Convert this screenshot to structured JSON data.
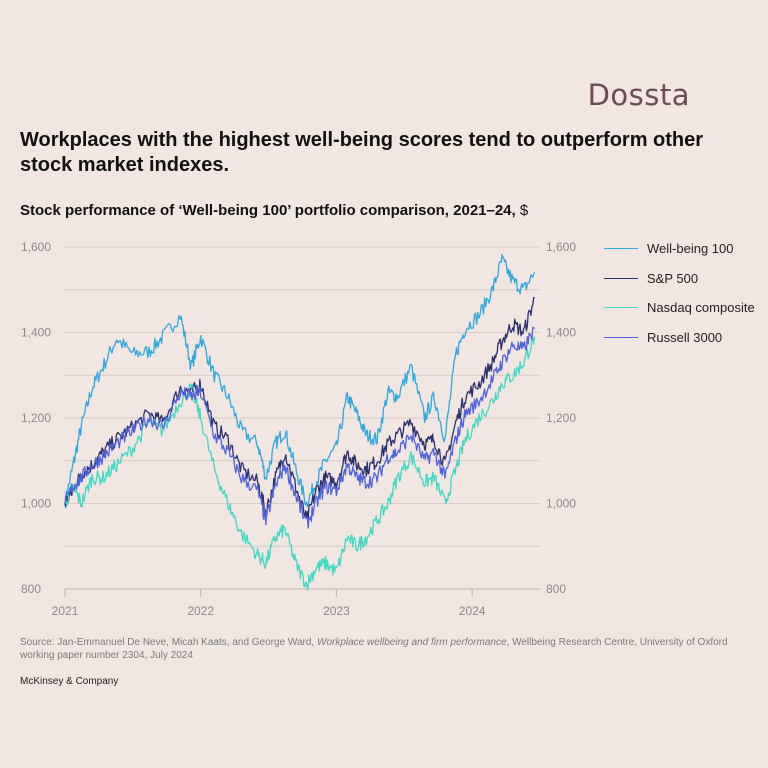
{
  "brand": {
    "name": "Dossta"
  },
  "headline": "Workplaces with the highest well-being scores tend to outperform other stock market indexes.",
  "subtitle": {
    "text": "Stock performance of ‘Well-being 100’ portfolio comparison, 2021–24,",
    "unit": "$"
  },
  "source": {
    "prefix": "Source: Jan-Emmanuel De Neve, Micah Kaats, and George Ward,",
    "title": "Workplace wellbeing and firm performance",
    "suffix": ", Wellbeing Research Centre, University of Oxford working paper number 2304, July 2024"
  },
  "footer": "McKinsey & Company",
  "chart_data": {
    "type": "line",
    "title": "Stock performance of ‘Well-being 100’ portfolio comparison, 2021–24, $",
    "x_ticks": [
      "2021",
      "2022",
      "2023",
      "2024"
    ],
    "y_ticks": [
      "800",
      "1,000",
      "1,200",
      "1,400",
      "1,600"
    ],
    "ylim": [
      800,
      1600
    ],
    "xlim": [
      2021.0,
      2024.5
    ],
    "grid": true,
    "legend_position": "right",
    "series": [
      {
        "name": "Well-being 100",
        "color": "#2ea8e0",
        "points": [
          [
            2021.0,
            1000
          ],
          [
            2021.06,
            1090
          ],
          [
            2021.12,
            1180
          ],
          [
            2021.2,
            1270
          ],
          [
            2021.28,
            1320
          ],
          [
            2021.38,
            1385
          ],
          [
            2021.5,
            1350
          ],
          [
            2021.62,
            1355
          ],
          [
            2021.72,
            1390
          ],
          [
            2021.85,
            1440
          ],
          [
            2021.93,
            1320
          ],
          [
            2022.0,
            1390
          ],
          [
            2022.1,
            1300
          ],
          [
            2022.2,
            1250
          ],
          [
            2022.3,
            1170
          ],
          [
            2022.42,
            1140
          ],
          [
            2022.48,
            1060
          ],
          [
            2022.55,
            1140
          ],
          [
            2022.62,
            1170
          ],
          [
            2022.7,
            1080
          ],
          [
            2022.78,
            1000
          ],
          [
            2022.85,
            1050
          ],
          [
            2022.92,
            1100
          ],
          [
            2023.0,
            1130
          ],
          [
            2023.08,
            1250
          ],
          [
            2023.15,
            1210
          ],
          [
            2023.22,
            1160
          ],
          [
            2023.3,
            1150
          ],
          [
            2023.38,
            1260
          ],
          [
            2023.45,
            1250
          ],
          [
            2023.55,
            1320
          ],
          [
            2023.65,
            1200
          ],
          [
            2023.72,
            1250
          ],
          [
            2023.8,
            1150
          ],
          [
            2023.88,
            1350
          ],
          [
            2023.95,
            1410
          ],
          [
            2024.05,
            1440
          ],
          [
            2024.15,
            1500
          ],
          [
            2024.22,
            1570
          ],
          [
            2024.3,
            1520
          ],
          [
            2024.38,
            1500
          ],
          [
            2024.46,
            1540
          ]
        ]
      },
      {
        "name": "S&P 500",
        "color": "#2b2f6e",
        "points": [
          [
            2021.0,
            1000
          ],
          [
            2021.06,
            1030
          ],
          [
            2021.12,
            1070
          ],
          [
            2021.2,
            1090
          ],
          [
            2021.28,
            1120
          ],
          [
            2021.38,
            1150
          ],
          [
            2021.5,
            1180
          ],
          [
            2021.62,
            1210
          ],
          [
            2021.72,
            1190
          ],
          [
            2021.85,
            1270
          ],
          [
            2021.93,
            1260
          ],
          [
            2022.0,
            1280
          ],
          [
            2022.1,
            1180
          ],
          [
            2022.2,
            1150
          ],
          [
            2022.3,
            1080
          ],
          [
            2022.42,
            1050
          ],
          [
            2022.48,
            980
          ],
          [
            2022.55,
            1060
          ],
          [
            2022.62,
            1120
          ],
          [
            2022.7,
            1040
          ],
          [
            2022.78,
            960
          ],
          [
            2022.85,
            1030
          ],
          [
            2022.92,
            1060
          ],
          [
            2023.0,
            1050
          ],
          [
            2023.08,
            1120
          ],
          [
            2023.15,
            1090
          ],
          [
            2023.22,
            1080
          ],
          [
            2023.3,
            1100
          ],
          [
            2023.38,
            1140
          ],
          [
            2023.45,
            1160
          ],
          [
            2023.55,
            1190
          ],
          [
            2023.65,
            1140
          ],
          [
            2023.72,
            1150
          ],
          [
            2023.8,
            1090
          ],
          [
            2023.88,
            1190
          ],
          [
            2023.95,
            1250
          ],
          [
            2024.05,
            1280
          ],
          [
            2024.15,
            1330
          ],
          [
            2024.22,
            1380
          ],
          [
            2024.3,
            1420
          ],
          [
            2024.38,
            1400
          ],
          [
            2024.46,
            1480
          ]
        ]
      },
      {
        "name": "Nasdaq composite",
        "color": "#3fd9c4",
        "points": [
          [
            2021.0,
            1000
          ],
          [
            2021.06,
            1040
          ],
          [
            2021.12,
            1000
          ],
          [
            2021.2,
            1060
          ],
          [
            2021.28,
            1060
          ],
          [
            2021.38,
            1090
          ],
          [
            2021.5,
            1130
          ],
          [
            2021.62,
            1190
          ],
          [
            2021.72,
            1170
          ],
          [
            2021.85,
            1240
          ],
          [
            2021.93,
            1270
          ],
          [
            2022.0,
            1200
          ],
          [
            2022.1,
            1080
          ],
          [
            2022.2,
            1000
          ],
          [
            2022.3,
            930
          ],
          [
            2022.42,
            880
          ],
          [
            2022.48,
            860
          ],
          [
            2022.55,
            920
          ],
          [
            2022.62,
            940
          ],
          [
            2022.7,
            860
          ],
          [
            2022.78,
            810
          ],
          [
            2022.85,
            850
          ],
          [
            2022.92,
            860
          ],
          [
            2023.0,
            840
          ],
          [
            2023.08,
            920
          ],
          [
            2023.15,
            900
          ],
          [
            2023.22,
            920
          ],
          [
            2023.3,
            960
          ],
          [
            2023.38,
            1000
          ],
          [
            2023.45,
            1060
          ],
          [
            2023.55,
            1110
          ],
          [
            2023.65,
            1050
          ],
          [
            2023.72,
            1060
          ],
          [
            2023.8,
            1000
          ],
          [
            2023.88,
            1080
          ],
          [
            2023.95,
            1150
          ],
          [
            2024.05,
            1200
          ],
          [
            2024.15,
            1240
          ],
          [
            2024.22,
            1280
          ],
          [
            2024.3,
            1300
          ],
          [
            2024.38,
            1330
          ],
          [
            2024.46,
            1390
          ]
        ]
      },
      {
        "name": "Russell 3000",
        "color": "#4f63e0",
        "points": [
          [
            2021.0,
            1000
          ],
          [
            2021.06,
            1040
          ],
          [
            2021.12,
            1060
          ],
          [
            2021.2,
            1090
          ],
          [
            2021.28,
            1110
          ],
          [
            2021.38,
            1140
          ],
          [
            2021.5,
            1170
          ],
          [
            2021.62,
            1200
          ],
          [
            2021.72,
            1180
          ],
          [
            2021.85,
            1260
          ],
          [
            2021.93,
            1250
          ],
          [
            2022.0,
            1260
          ],
          [
            2022.1,
            1160
          ],
          [
            2022.2,
            1120
          ],
          [
            2022.3,
            1060
          ],
          [
            2022.42,
            1030
          ],
          [
            2022.48,
            960
          ],
          [
            2022.55,
            1040
          ],
          [
            2022.62,
            1090
          ],
          [
            2022.7,
            1020
          ],
          [
            2022.78,
            950
          ],
          [
            2022.85,
            1000
          ],
          [
            2022.92,
            1040
          ],
          [
            2023.0,
            1030
          ],
          [
            2023.08,
            1090
          ],
          [
            2023.15,
            1060
          ],
          [
            2023.22,
            1050
          ],
          [
            2023.3,
            1060
          ],
          [
            2023.38,
            1110
          ],
          [
            2023.45,
            1120
          ],
          [
            2023.55,
            1160
          ],
          [
            2023.65,
            1100
          ],
          [
            2023.72,
            1120
          ],
          [
            2023.8,
            1060
          ],
          [
            2023.88,
            1150
          ],
          [
            2023.95,
            1210
          ],
          [
            2024.05,
            1240
          ],
          [
            2024.15,
            1290
          ],
          [
            2024.22,
            1330
          ],
          [
            2024.3,
            1370
          ],
          [
            2024.38,
            1360
          ],
          [
            2024.46,
            1410
          ]
        ]
      }
    ]
  }
}
